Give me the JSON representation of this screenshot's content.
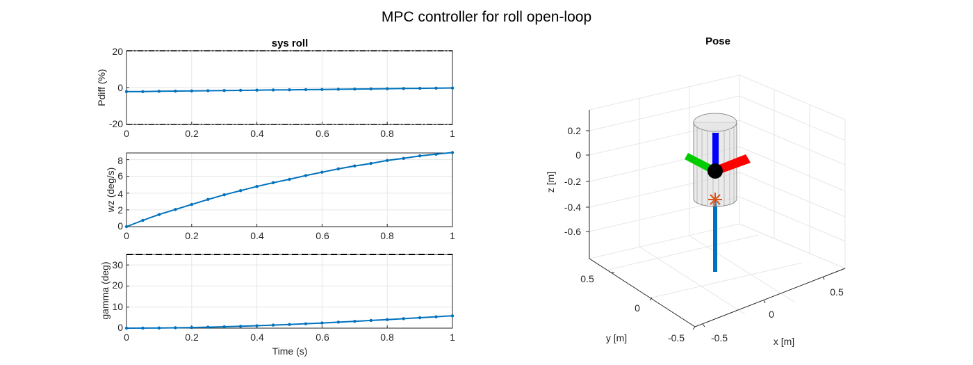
{
  "figure": {
    "title": "MPC controller for roll open-loop",
    "colors": {
      "series": "#0072BD",
      "axis": "#262626",
      "grid": "#e6e6e6",
      "background": "#ffffff"
    }
  },
  "chart_data": [
    {
      "type": "line",
      "title": "sys roll",
      "xlabel": "",
      "ylabel": "Pdiff (%)",
      "xlim": [
        0,
        1
      ],
      "ylim": [
        -20,
        20
      ],
      "xticks": [
        "0",
        "0.2",
        "0.4",
        "0.6",
        "0.8",
        "1"
      ],
      "yticks": [
        "-20",
        "0",
        "20"
      ],
      "grid": true,
      "series": [
        {
          "x": [
            0,
            0.05,
            0.1,
            0.15,
            0.2,
            0.25,
            0.3,
            0.35,
            0.4,
            0.45,
            0.5,
            0.55,
            0.6,
            0.65,
            0.7,
            0.75,
            0.8,
            0.85,
            0.9,
            0.95,
            1.0
          ],
          "y": [
            -2.2,
            -2.2,
            -2.0,
            -1.9,
            -1.8,
            -1.7,
            -1.6,
            -1.5,
            -1.4,
            -1.3,
            -1.2,
            -1.1,
            -1.0,
            -0.9,
            -0.8,
            -0.7,
            -0.6,
            -0.5,
            -0.4,
            -0.3,
            -0.2
          ]
        }
      ],
      "limit_lines": [
        {
          "y": 20,
          "style": "dash-dot"
        },
        {
          "y": -20,
          "style": "dash-dot"
        }
      ]
    },
    {
      "type": "line",
      "title": "",
      "xlabel": "",
      "ylabel": "wz (deg/s)",
      "xlim": [
        0,
        1
      ],
      "ylim": [
        0,
        8.8
      ],
      "xticks": [
        "0",
        "0.2",
        "0.4",
        "0.6",
        "0.8",
        "1"
      ],
      "yticks": [
        "0",
        "2",
        "4",
        "6",
        "8"
      ],
      "grid": true,
      "series": [
        {
          "x": [
            0,
            0.05,
            0.1,
            0.15,
            0.2,
            0.25,
            0.3,
            0.35,
            0.4,
            0.45,
            0.5,
            0.55,
            0.6,
            0.65,
            0.7,
            0.75,
            0.8,
            0.85,
            0.9,
            0.95,
            1.0
          ],
          "y": [
            0.0,
            0.75,
            1.45,
            2.05,
            2.65,
            3.25,
            3.8,
            4.3,
            4.8,
            5.25,
            5.65,
            6.1,
            6.5,
            6.9,
            7.25,
            7.55,
            7.9,
            8.15,
            8.45,
            8.65,
            8.85
          ]
        }
      ]
    },
    {
      "type": "line",
      "title": "",
      "xlabel": "Time (s)",
      "ylabel": "gamma (deg)",
      "xlim": [
        0,
        1
      ],
      "ylim": [
        0,
        35
      ],
      "xticks": [
        "0",
        "0.2",
        "0.4",
        "0.6",
        "0.8",
        "1"
      ],
      "yticks": [
        "0",
        "10",
        "20",
        "30"
      ],
      "grid": true,
      "series": [
        {
          "x": [
            0,
            0.05,
            0.1,
            0.15,
            0.2,
            0.25,
            0.3,
            0.35,
            0.4,
            0.45,
            0.5,
            0.55,
            0.6,
            0.65,
            0.7,
            0.75,
            0.8,
            0.85,
            0.9,
            0.95,
            1.0
          ],
          "y": [
            0,
            0.02,
            0.08,
            0.18,
            0.3,
            0.47,
            0.66,
            0.9,
            1.15,
            1.45,
            1.75,
            2.1,
            2.45,
            2.85,
            3.25,
            3.65,
            4.05,
            4.5,
            4.95,
            5.4,
            5.85
          ]
        }
      ],
      "limit_lines": [
        {
          "y": 35,
          "style": "dashed"
        }
      ]
    },
    {
      "type": "scatter",
      "title": "Pose",
      "projection": "3d",
      "xlabel": "x [m]",
      "ylabel": "y [m]",
      "zlabel": "z [m]",
      "xticks": [
        "-0.5",
        "0",
        "0.5"
      ],
      "yticks": [
        "-0.5",
        "0",
        "0.5"
      ],
      "zticks": [
        "0.2",
        "0",
        "-0.2",
        "-0.4",
        "-0.6"
      ],
      "grid": true,
      "body": {
        "shape": "cylinder",
        "color": "#d9d9d9",
        "center_marker": "#000000"
      },
      "axes_triad": [
        {
          "axis": "x",
          "color": "#ff0000"
        },
        {
          "axis": "y",
          "color": "#00cc00"
        },
        {
          "axis": "z",
          "color": "#0000ff"
        }
      ],
      "thrust_vector": {
        "color": "#0072BD"
      },
      "marker": {
        "symbol": "asterisk",
        "color": "#D95319"
      }
    }
  ]
}
